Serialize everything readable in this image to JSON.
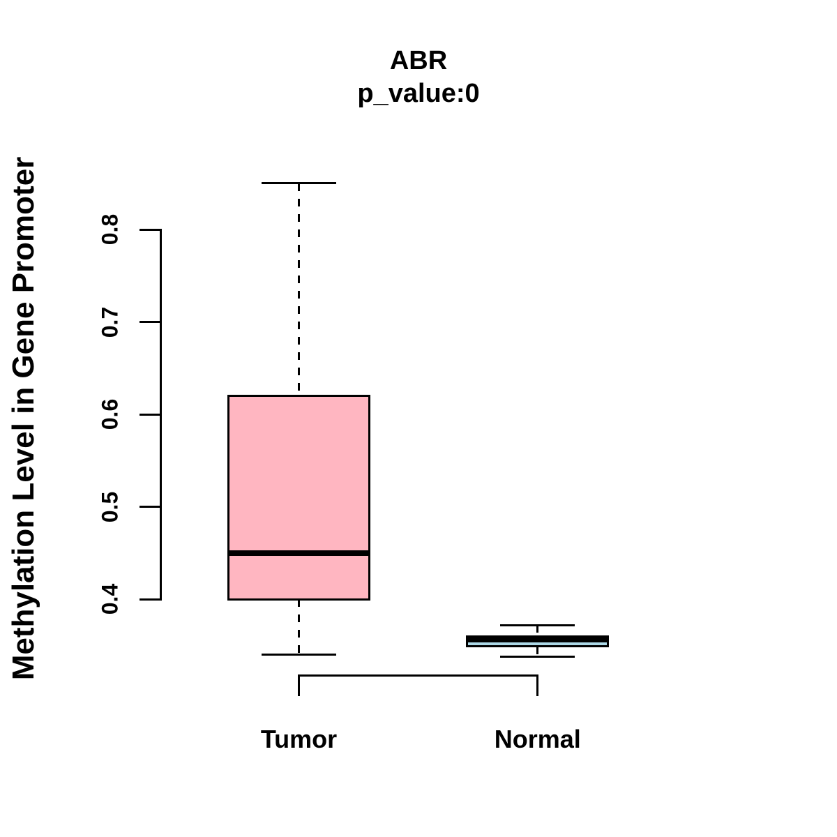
{
  "figure": {
    "title": "ABR",
    "subtitle": "p_value:0",
    "y_axis_label": "Methylation Level in Gene Promoter"
  },
  "chart_data": {
    "type": "boxplot",
    "title": "ABR",
    "subtitle": "p_value:0",
    "ylabel": "Methylation Level in Gene Promoter",
    "xlabel": "",
    "categories": [
      "Tumor",
      "Normal"
    ],
    "yticks": [
      0.4,
      0.5,
      0.6,
      0.7,
      0.8
    ],
    "ytick_labels": [
      "0.4",
      "0.5",
      "0.6",
      "0.7",
      "0.8"
    ],
    "ylim": [
      0.33,
      0.87
    ],
    "grid": false,
    "legend": false,
    "series": [
      {
        "name": "Tumor",
        "whisker_low": 0.34,
        "q1": 0.4,
        "median": 0.45,
        "q3": 0.62,
        "whisker_high": 0.85,
        "box_fill": "#FFB6C1",
        "whisker_style": "dashed"
      },
      {
        "name": "Normal",
        "whisker_low": 0.338,
        "q1": 0.349,
        "median": 0.356,
        "q3": 0.36,
        "whisker_high": 0.372,
        "box_fill": "#ADD8E6",
        "whisker_style": "dashed"
      }
    ],
    "colors": {
      "box_border": "#000000",
      "median_line": "#000000",
      "axis": "#000000",
      "text": "#000000",
      "background": "#FFFFFF"
    }
  }
}
